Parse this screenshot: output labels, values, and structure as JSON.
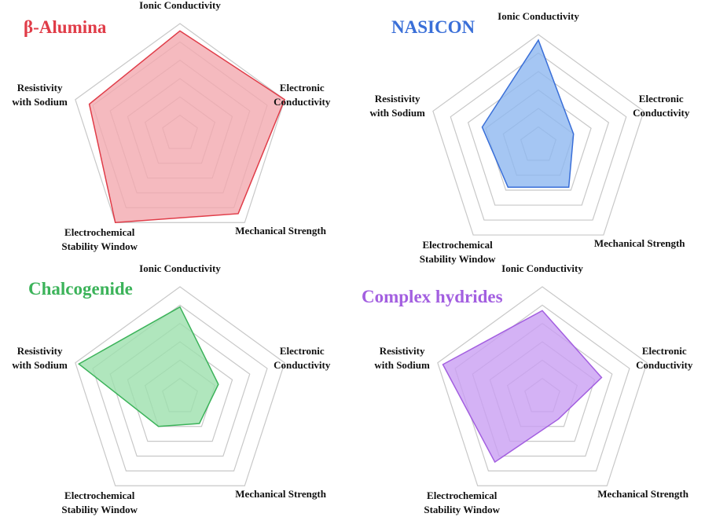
{
  "chart_data": [
    {
      "type": "radar",
      "title": "β-Alumina",
      "color": "#e03c48",
      "fill": "#f2a9af",
      "categories": [
        "Ionic Conductivity",
        "Electronic\nConductivity",
        "Mechanical Strength",
        "Electrochemical\nStability Window",
        "Resistivity\nwith Sodium"
      ],
      "values": [
        5.6,
        6,
        5.4,
        6,
        5.2
      ],
      "rlim": [
        0,
        6
      ],
      "rticks": [
        1,
        2,
        3,
        4,
        5,
        6
      ]
    },
    {
      "type": "radar",
      "title": "NASICON",
      "color": "#3a6fd8",
      "fill": "#8fb8f0",
      "categories": [
        "Ionic Conductivity",
        "Electronic\nConductivity",
        "Mechanical Strength",
        "Electrochemical\nStability Window",
        "Resistivity\nwith Sodium"
      ],
      "values": [
        5.7,
        2,
        2.8,
        2.8,
        3.2
      ],
      "rlim": [
        0,
        6
      ],
      "rticks": [
        1,
        2,
        3,
        4,
        5,
        6
      ]
    },
    {
      "type": "radar",
      "title": "Chalcogenide",
      "color": "#3cb35a",
      "fill": "#9ce0ac",
      "categories": [
        "Ionic Conductivity",
        "Electronic\nConductivity",
        "Mechanical Strength",
        "Electrochemical\nStability Window",
        "Resistivity\nwith Sodium"
      ],
      "values": [
        4.9,
        2.2,
        1.8,
        2,
        5.8
      ],
      "rlim": [
        0,
        6
      ],
      "rticks": [
        1,
        2,
        3,
        4,
        5,
        6
      ]
    },
    {
      "type": "radar",
      "title": "Complex hydrides",
      "color": "#a35fe0",
      "fill": "#c99ff2",
      "categories": [
        "Ionic Conductivity",
        "Electronic\nConductivity",
        "Mechanical Strength",
        "Electrochemical\nStability Window",
        "Resistivity\nwith Sodium"
      ],
      "values": [
        4.7,
        3.4,
        1.5,
        4.4,
        5.7
      ],
      "rlim": [
        0,
        6
      ],
      "rticks": [
        1,
        2,
        3,
        4,
        5,
        6
      ]
    }
  ]
}
